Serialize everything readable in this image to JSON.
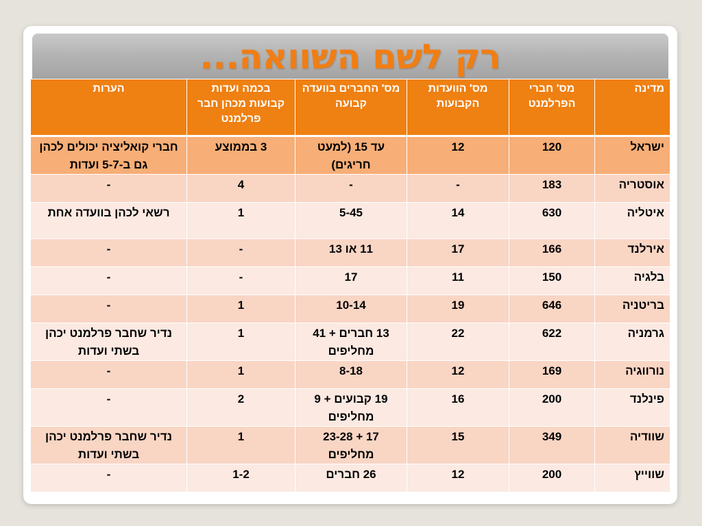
{
  "title": "רק לשם השוואה...",
  "columns": [
    "מדינה",
    "מס' חברי הפרלמנט",
    "מס' הוועדות הקבועות",
    "מס' החברים בוועדה קבועה",
    "בכמה ועדות קבועות מכהן חבר פרלמנט",
    "הערות"
  ],
  "rows": [
    {
      "country": "ישראל",
      "members": "120",
      "committees": "12",
      "per_committee": "עד 15 (למעט חריגים)",
      "committees_per_mp": "3 בממוצע",
      "notes": "חברי קואליציה יכולים לכהן גם ב-5-7 ועדות"
    },
    {
      "country": "אוסטריה",
      "members": "183",
      "committees": "-",
      "per_committee": "-",
      "committees_per_mp": "4",
      "notes": "-"
    },
    {
      "country": "איטליה",
      "members": "630",
      "committees": "14",
      "per_committee": "5-45",
      "committees_per_mp": "1",
      "notes": "רשאי לכהן בוועדה אחת"
    },
    {
      "country": "אירלנד",
      "members": "166",
      "committees": "17",
      "per_committee": "11 או 13",
      "committees_per_mp": "-",
      "notes": "-"
    },
    {
      "country": "בלגיה",
      "members": "150",
      "committees": "11",
      "per_committee": "17",
      "committees_per_mp": "-",
      "notes": "-"
    },
    {
      "country": "בריטניה",
      "members": "646",
      "committees": "19",
      "per_committee": "10-14",
      "committees_per_mp": "1",
      "notes": "-"
    },
    {
      "country": "גרמניה",
      "members": "622",
      "committees": "22",
      "per_committee": "13 חברים + 41 מחליפים",
      "committees_per_mp": "1",
      "notes": "נדיר שחבר פרלמנט יכהן בשתי ועדות"
    },
    {
      "country": "נורווגיה",
      "members": "169",
      "committees": "12",
      "per_committee": "8-18",
      "committees_per_mp": "1",
      "notes": "-"
    },
    {
      "country": "פינלנד",
      "members": "200",
      "committees": "16",
      "per_committee": "19 קבועים + 9 מחליפים",
      "committees_per_mp": "2",
      "notes": "-"
    },
    {
      "country": "שוודיה",
      "members": "349",
      "committees": "15",
      "per_committee": "17 + 23-28 מחליפים",
      "committees_per_mp": "1",
      "notes": "נדיר שחבר פרלמנט יכהן בשתי ועדות"
    },
    {
      "country": "שווייץ",
      "members": "200",
      "committees": "12",
      "per_committee": "26 חברים",
      "committees_per_mp": "1-2",
      "notes": "-"
    }
  ],
  "colors": {
    "header_bg": "#ef8012",
    "first_row_bg": "#f7ae77",
    "row_odd_bg": "#f9d5c4",
    "row_even_bg": "#fbe9e2",
    "title_color": "#f07e14"
  }
}
